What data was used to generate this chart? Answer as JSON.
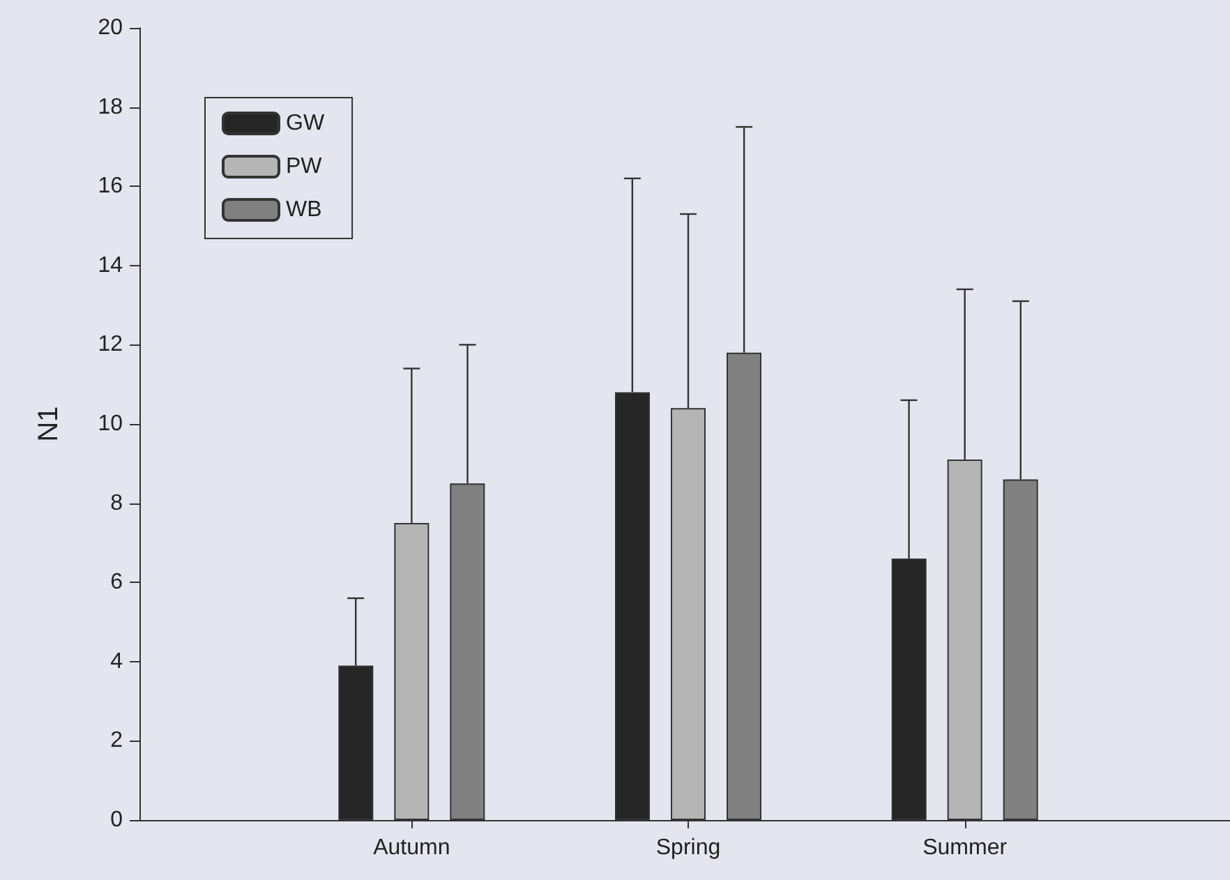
{
  "chart_data": {
    "type": "bar",
    "ylabel": "N1",
    "categories": [
      "Autumn",
      "Spring",
      "Summer"
    ],
    "series": [
      {
        "name": "GW",
        "color": "#262626",
        "values": [
          3.9,
          10.8,
          6.6
        ],
        "errors": [
          [
            3.9,
            5.6
          ],
          [
            10.8,
            16.2
          ],
          [
            6.6,
            10.6
          ]
        ]
      },
      {
        "name": "PW",
        "color": "#b5b5b5",
        "values": [
          7.5,
          10.4,
          9.1
        ],
        "errors": [
          [
            7.5,
            11.4
          ],
          [
            10.4,
            15.3
          ],
          [
            9.1,
            13.4
          ]
        ]
      },
      {
        "name": "WB",
        "color": "#808080",
        "values": [
          8.5,
          11.8,
          8.6
        ],
        "errors": [
          [
            8.5,
            12.0
          ],
          [
            11.8,
            17.5
          ],
          [
            8.6,
            13.1
          ]
        ]
      }
    ],
    "ylim": [
      0,
      20
    ],
    "yticks": [
      0,
      2,
      4,
      6,
      8,
      10,
      12,
      14,
      16,
      18,
      20
    ],
    "grid": false,
    "legend": "top left"
  }
}
